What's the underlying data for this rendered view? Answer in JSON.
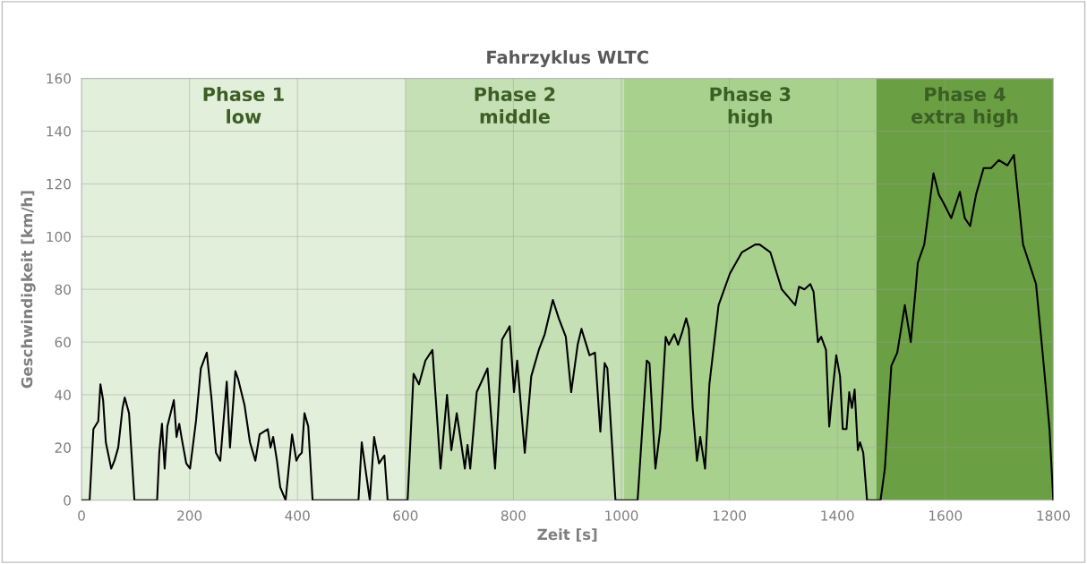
{
  "chart_data": {
    "type": "line",
    "title": "Fahrzyklus WLTC",
    "xlabel": "Zeit [s]",
    "ylabel": "Geschwindigkeit [km/h]",
    "xlim": [
      0,
      1800
    ],
    "ylim": [
      0,
      160
    ],
    "xticks": [
      0,
      200,
      400,
      600,
      800,
      1000,
      1200,
      1400,
      1600,
      1800
    ],
    "yticks": [
      0,
      20,
      40,
      60,
      80,
      100,
      120,
      140,
      160
    ],
    "grid": true,
    "bands": [
      {
        "axis": "x",
        "from": 0,
        "to": 600,
        "label": "Phase 1\nlow",
        "color": "#e2efda"
      },
      {
        "axis": "x",
        "from": 600,
        "to": 1005,
        "label": "Phase 2\nmiddle",
        "color": "#c5e0b4"
      },
      {
        "axis": "x",
        "from": 1005,
        "to": 1472,
        "label": "Phase 3\nhigh",
        "color": "#a9d18e"
      },
      {
        "axis": "x",
        "from": 1472,
        "to": 1800,
        "label": "Phase 4\nextra high",
        "color": "#6a9f43"
      }
    ],
    "series": [
      {
        "color": "#000000",
        "x": [
          0,
          15,
          22,
          31,
          35,
          40,
          45,
          55,
          61,
          68,
          76,
          80,
          88,
          98,
          140,
          144,
          149,
          154,
          159,
          171,
          176,
          181,
          186,
          194,
          201,
          212,
          221,
          232,
          241,
          249,
          257,
          269,
          275,
          285,
          290,
          302,
          312,
          322,
          330,
          345,
          350,
          355,
          362,
          368,
          378,
          390,
          398,
          403,
          408,
          413,
          420,
          428,
          513,
          519,
          534,
          542,
          551,
          561,
          567,
          604,
          615,
          625,
          637,
          650,
          665,
          677,
          685,
          695,
          703,
          710,
          715,
          720,
          732,
          741,
          752,
          766,
          779,
          793,
          801,
          807,
          821,
          833,
          847,
          858,
          873,
          884,
          897,
          907,
          919,
          926,
          941,
          951,
          961,
          969,
          974,
          989,
          1030,
          1047,
          1052,
          1063,
          1072,
          1082,
          1088,
          1098,
          1105,
          1113,
          1120,
          1125,
          1132,
          1140,
          1146,
          1155,
          1163,
          1180,
          1201,
          1223,
          1248,
          1256,
          1276,
          1297,
          1322,
          1329,
          1339,
          1350,
          1356,
          1364,
          1370,
          1379,
          1385,
          1389,
          1398,
          1405,
          1410,
          1417,
          1422,
          1427,
          1432,
          1438,
          1442,
          1448,
          1455,
          1480,
          1488,
          1500,
          1511,
          1525,
          1536,
          1545,
          1549,
          1561,
          1578,
          1588,
          1596,
          1611,
          1627,
          1636,
          1646,
          1657,
          1671,
          1685,
          1699,
          1715,
          1727,
          1744,
          1768,
          1782,
          1793,
          1800
        ],
        "values": [
          0,
          0,
          27,
          30,
          44,
          38,
          22,
          12,
          15,
          20,
          35,
          39,
          33,
          0,
          0,
          18,
          29,
          12,
          28,
          38,
          24,
          29,
          23,
          14,
          12,
          30,
          50,
          56,
          38,
          18,
          15,
          45,
          20,
          49,
          46,
          36,
          22,
          15,
          25,
          27,
          20,
          24,
          15,
          5,
          0,
          25,
          15,
          17,
          18,
          33,
          28,
          0,
          0,
          22,
          0,
          24,
          14,
          17,
          0,
          0,
          48,
          44,
          53,
          57,
          12,
          40,
          19,
          33,
          22,
          12,
          21,
          12,
          41,
          45,
          50,
          12,
          61,
          66,
          41,
          53,
          18,
          47,
          57,
          63,
          76,
          69,
          62,
          41,
          59,
          65,
          55,
          56,
          26,
          52,
          50,
          0,
          0,
          53,
          52,
          12,
          27,
          62,
          59,
          63,
          59,
          64,
          69,
          65,
          35,
          15,
          24,
          12,
          44,
          74,
          86,
          94,
          97,
          97,
          94,
          80,
          74,
          81,
          80,
          82,
          79,
          60,
          62,
          57,
          28,
          37,
          55,
          47,
          27,
          27,
          41,
          35,
          42,
          19,
          22,
          18,
          0,
          0,
          12,
          51,
          56,
          74,
          60,
          80,
          90,
          97,
          124,
          116,
          113,
          107,
          117,
          107,
          104,
          116,
          126,
          126,
          129,
          127,
          131,
          97,
          82,
          52,
          27,
          0
        ]
      }
    ]
  }
}
